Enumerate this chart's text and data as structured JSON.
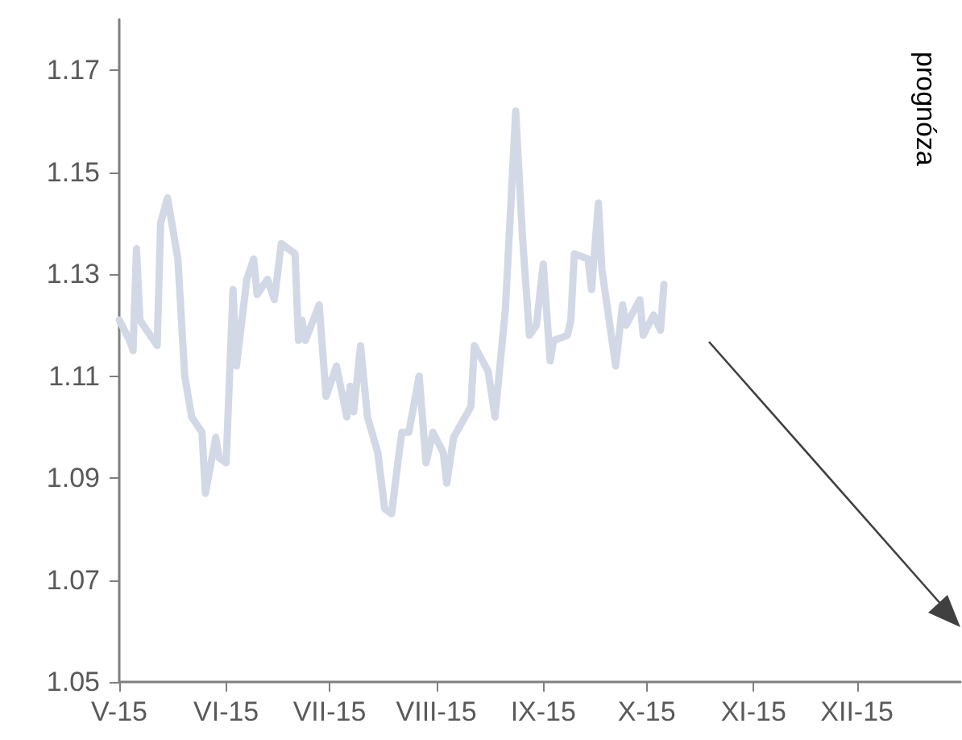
{
  "chart_data": {
    "type": "line",
    "annotations": [
      "prognóza"
    ],
    "x": [
      "2015-05-01",
      "2015-05-04",
      "2015-05-05",
      "2015-05-06",
      "2015-05-07",
      "2015-05-11",
      "2015-05-12",
      "2015-05-13",
      "2015-05-15",
      "2015-05-18",
      "2015-05-20",
      "2015-05-22",
      "2015-05-25",
      "2015-05-26",
      "2015-05-29",
      "2015-05-30",
      "2015-06-01",
      "2015-06-03",
      "2015-06-04",
      "2015-06-07",
      "2015-06-09",
      "2015-06-10",
      "2015-06-13",
      "2015-06-15",
      "2015-06-17",
      "2015-06-21",
      "2015-06-22",
      "2015-06-23",
      "2015-06-24",
      "2015-06-28",
      "2015-06-30",
      "2015-07-03",
      "2015-07-06",
      "2015-07-07",
      "2015-07-08",
      "2015-07-10",
      "2015-07-12",
      "2015-07-15",
      "2015-07-17",
      "2015-07-19",
      "2015-07-21",
      "2015-07-22",
      "2015-07-24",
      "2015-07-27",
      "2015-07-29",
      "2015-07-31",
      "2015-08-03",
      "2015-08-04",
      "2015-08-06",
      "2015-08-11",
      "2015-08-12",
      "2015-08-16",
      "2015-08-18",
      "2015-08-21",
      "2015-08-24",
      "2015-08-26",
      "2015-08-28",
      "2015-08-30",
      "2015-09-01",
      "2015-09-03",
      "2015-09-04",
      "2015-09-08",
      "2015-09-09",
      "2015-09-10",
      "2015-09-14",
      "2015-09-15",
      "2015-09-17",
      "2015-09-18",
      "2015-09-22",
      "2015-09-24",
      "2015-09-25",
      "2015-09-29",
      "2015-09-30",
      "2015-10-03",
      "2015-10-05",
      "2015-10-06"
    ],
    "series": [
      {
        "color": "#d3d8e6",
        "values": [
          1.121,
          1.117,
          1.115,
          1.135,
          1.121,
          1.117,
          1.116,
          1.14,
          1.145,
          1.133,
          1.11,
          1.102,
          1.099,
          1.087,
          1.098,
          1.094,
          1.093,
          1.127,
          1.112,
          1.129,
          1.133,
          1.126,
          1.129,
          1.125,
          1.136,
          1.134,
          1.117,
          1.121,
          1.117,
          1.124,
          1.106,
          1.112,
          1.102,
          1.108,
          1.103,
          1.116,
          1.102,
          1.095,
          1.084,
          1.083,
          1.094,
          1.099,
          1.099,
          1.11,
          1.093,
          1.099,
          1.095,
          1.089,
          1.098,
          1.104,
          1.116,
          1.111,
          1.102,
          1.123,
          1.162,
          1.137,
          1.118,
          1.12,
          1.132,
          1.113,
          1.117,
          1.118,
          1.121,
          1.134,
          1.133,
          1.127,
          1.144,
          1.131,
          1.112,
          1.124,
          1.12,
          1.125,
          1.118,
          1.122,
          1.119,
          1.128
        ]
      }
    ],
    "xlim": [
      "2015-05-01",
      "2015-12-31"
    ],
    "xticks": [
      {
        "value": "2015-05-01",
        "label": "V-15"
      },
      {
        "value": "2015-06-01",
        "label": "VI-15"
      },
      {
        "value": "2015-07-01",
        "label": "VII-15"
      },
      {
        "value": "2015-08-01",
        "label": "VIII-15"
      },
      {
        "value": "2015-09-01",
        "label": "IX-15"
      },
      {
        "value": "2015-10-01",
        "label": "X-15"
      },
      {
        "value": "2015-11-01",
        "label": "XI-15"
      },
      {
        "value": "2015-12-01",
        "label": "XII-15"
      }
    ],
    "ylim": [
      1.05,
      1.18
    ],
    "yticks": [
      1.05,
      1.07,
      1.09,
      1.11,
      1.13,
      1.15,
      1.17
    ],
    "grid": false,
    "marker": "none",
    "line_style": "solid"
  }
}
